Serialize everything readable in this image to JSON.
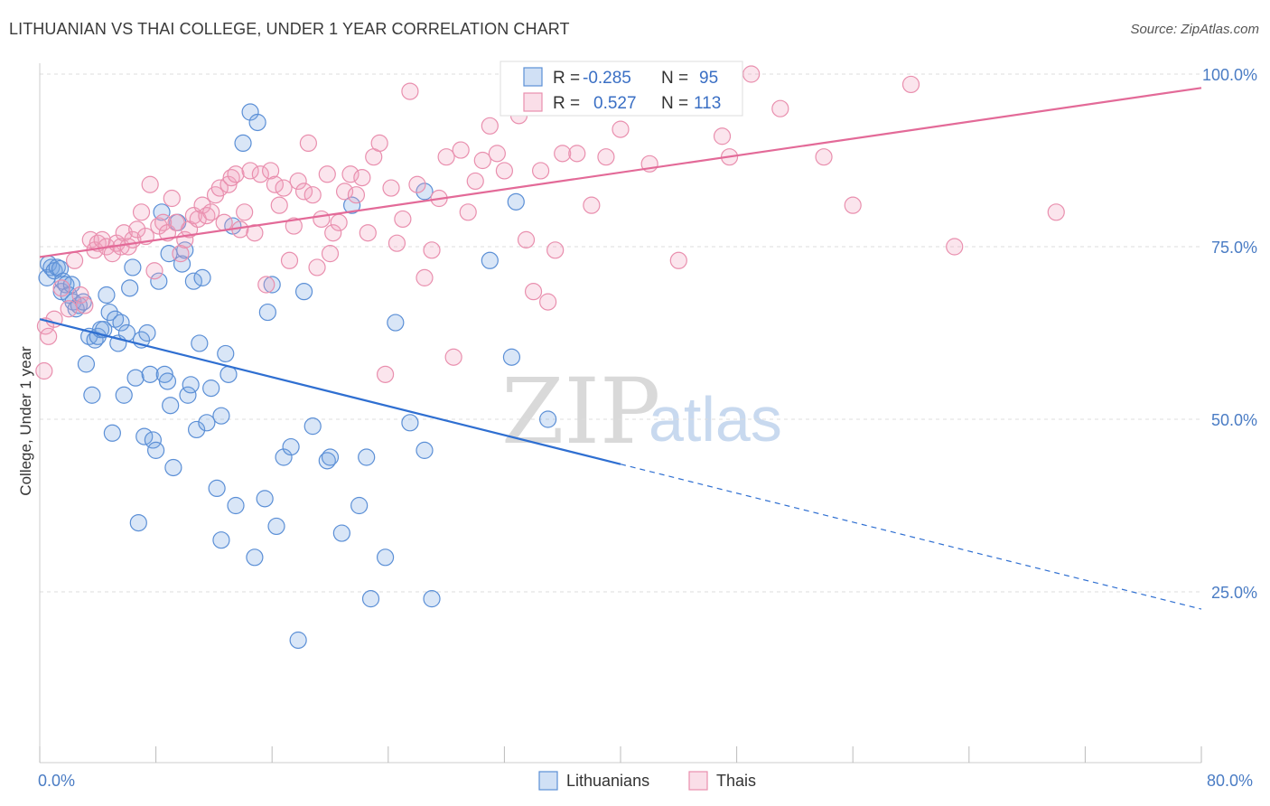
{
  "title": "LITHUANIAN VS THAI COLLEGE, UNDER 1 YEAR CORRELATION CHART",
  "source": "Source: ZipAtlas.com",
  "watermark": {
    "zip": "ZIP",
    "atlas": "atlas"
  },
  "colors": {
    "blue": "#5b8fd6",
    "blue_fill": "rgba(120,165,225,0.28)",
    "blue_line": "#2f6fd1",
    "pink": "#e98fae",
    "pink_fill": "rgba(240,160,190,0.28)",
    "pink_line": "#e36a98",
    "grid": "#dddddd",
    "tick_text": "#4a7cc4"
  },
  "stats_box": {
    "rows": [
      {
        "r_label": "R =",
        "r_value": "-0.285",
        "n_label": "N =",
        "n_value": "95"
      },
      {
        "r_label": "R =",
        "r_value": "0.527",
        "n_label": "N =",
        "n_value": "113"
      }
    ]
  },
  "legend": {
    "items": [
      "Lithuanians",
      "Thais"
    ]
  },
  "chart_data": {
    "type": "scatter",
    "title": "LITHUANIAN VS THAI COLLEGE, UNDER 1 YEAR CORRELATION CHART",
    "xlabel": "",
    "ylabel": "College, Under 1 year",
    "xlim": [
      0,
      80
    ],
    "ylim": [
      0,
      105
    ],
    "x_tick_labels": {
      "left": "0.0%",
      "right": "80.0%"
    },
    "y_ticks": [
      {
        "value": 25,
        "label": "25.0%"
      },
      {
        "value": 50,
        "label": "50.0%"
      },
      {
        "value": 75,
        "label": "75.0%"
      },
      {
        "value": 100,
        "label": "100.0%"
      }
    ],
    "grid": true,
    "series": [
      {
        "name": "Lithuanians",
        "color": "#5b8fd6",
        "trend": {
          "x0": 0,
          "y0": 64.5,
          "x1": 40,
          "y1": 43.5,
          "dash_to_x": 80,
          "dash_to_y": 22.5
        },
        "points": [
          [
            0.5,
            70.5
          ],
          [
            0.6,
            72.5
          ],
          [
            0.8,
            72.0
          ],
          [
            1.0,
            71.5
          ],
          [
            1.2,
            72.0
          ],
          [
            1.4,
            71.8
          ],
          [
            1.5,
            68.5
          ],
          [
            1.6,
            70.0
          ],
          [
            1.8,
            69.5
          ],
          [
            2.0,
            68.0
          ],
          [
            2.2,
            69.5
          ],
          [
            2.3,
            67.0
          ],
          [
            2.5,
            66.0
          ],
          [
            2.7,
            66.5
          ],
          [
            3.0,
            67.0
          ],
          [
            3.2,
            58.0
          ],
          [
            3.4,
            62.0
          ],
          [
            3.6,
            53.5
          ],
          [
            3.8,
            61.5
          ],
          [
            4.0,
            62.0
          ],
          [
            4.2,
            63.0
          ],
          [
            4.4,
            63.0
          ],
          [
            4.6,
            68.0
          ],
          [
            4.8,
            65.5
          ],
          [
            5.0,
            48.0
          ],
          [
            5.2,
            64.5
          ],
          [
            5.4,
            61.0
          ],
          [
            5.6,
            64.0
          ],
          [
            5.8,
            53.5
          ],
          [
            6.0,
            62.5
          ],
          [
            6.2,
            69.0
          ],
          [
            6.4,
            72.0
          ],
          [
            6.6,
            56.0
          ],
          [
            6.8,
            35.0
          ],
          [
            7.0,
            61.5
          ],
          [
            7.2,
            47.5
          ],
          [
            7.4,
            62.5
          ],
          [
            7.6,
            56.5
          ],
          [
            7.8,
            47.0
          ],
          [
            8.0,
            45.5
          ],
          [
            8.2,
            70.0
          ],
          [
            8.4,
            80.0
          ],
          [
            8.6,
            56.5
          ],
          [
            8.8,
            55.5
          ],
          [
            9.0,
            52.0
          ],
          [
            9.2,
            43.0
          ],
          [
            9.5,
            78.5
          ],
          [
            9.8,
            72.5
          ],
          [
            10.0,
            74.5
          ],
          [
            10.2,
            53.5
          ],
          [
            10.4,
            55.0
          ],
          [
            10.6,
            70.0
          ],
          [
            10.8,
            48.5
          ],
          [
            11.0,
            61.0
          ],
          [
            11.2,
            70.5
          ],
          [
            11.5,
            49.5
          ],
          [
            11.8,
            54.5
          ],
          [
            12.2,
            40.0
          ],
          [
            12.5,
            50.5
          ],
          [
            12.5,
            32.5
          ],
          [
            12.8,
            59.5
          ],
          [
            13.0,
            56.5
          ],
          [
            13.3,
            78.0
          ],
          [
            13.5,
            37.5
          ],
          [
            14.0,
            90.0
          ],
          [
            14.5,
            94.5
          ],
          [
            14.8,
            30.0
          ],
          [
            15.0,
            93.0
          ],
          [
            15.5,
            38.5
          ],
          [
            15.7,
            65.5
          ],
          [
            16.0,
            69.5
          ],
          [
            16.3,
            34.5
          ],
          [
            16.8,
            44.5
          ],
          [
            17.3,
            46.0
          ],
          [
            17.8,
            18.0
          ],
          [
            18.2,
            68.5
          ],
          [
            18.8,
            49.0
          ],
          [
            19.8,
            44.0
          ],
          [
            20.0,
            44.5
          ],
          [
            20.8,
            33.5
          ],
          [
            21.5,
            81.0
          ],
          [
            22.0,
            37.5
          ],
          [
            22.5,
            44.5
          ],
          [
            22.8,
            24.0
          ],
          [
            23.8,
            30.0
          ],
          [
            24.5,
            64.0
          ],
          [
            25.5,
            49.5
          ],
          [
            26.5,
            45.5
          ],
          [
            26.5,
            83.0
          ],
          [
            27.0,
            24.0
          ],
          [
            31.0,
            73.0
          ],
          [
            32.5,
            59.0
          ],
          [
            32.8,
            81.5
          ],
          [
            35.0,
            50.0
          ],
          [
            8.9,
            74.0
          ]
        ]
      },
      {
        "name": "Thais",
        "color": "#e98fae",
        "trend": {
          "x0": 0,
          "y0": 73.5,
          "x1": 80,
          "y1": 98.0
        },
        "points": [
          [
            0.3,
            57.0
          ],
          [
            0.4,
            63.5
          ],
          [
            0.6,
            62.0
          ],
          [
            1.0,
            64.5
          ],
          [
            1.5,
            69.0
          ],
          [
            2.0,
            66.0
          ],
          [
            2.4,
            73.0
          ],
          [
            2.8,
            68.0
          ],
          [
            3.1,
            66.5
          ],
          [
            3.5,
            76.0
          ],
          [
            3.8,
            74.5
          ],
          [
            4.0,
            75.5
          ],
          [
            4.3,
            76.0
          ],
          [
            4.6,
            75.0
          ],
          [
            5.0,
            74.0
          ],
          [
            5.3,
            75.5
          ],
          [
            5.6,
            75.0
          ],
          [
            5.8,
            77.0
          ],
          [
            6.1,
            75.0
          ],
          [
            6.4,
            76.0
          ],
          [
            6.7,
            77.5
          ],
          [
            7.0,
            80.0
          ],
          [
            7.3,
            76.5
          ],
          [
            7.6,
            84.0
          ],
          [
            7.9,
            71.5
          ],
          [
            8.2,
            78.0
          ],
          [
            8.5,
            78.5
          ],
          [
            8.8,
            77.0
          ],
          [
            9.1,
            82.0
          ],
          [
            9.4,
            78.5
          ],
          [
            9.7,
            74.0
          ],
          [
            10.0,
            76.0
          ],
          [
            10.3,
            77.5
          ],
          [
            10.6,
            79.5
          ],
          [
            10.9,
            79.0
          ],
          [
            11.2,
            81.0
          ],
          [
            11.5,
            79.5
          ],
          [
            11.8,
            80.0
          ],
          [
            12.1,
            82.5
          ],
          [
            12.4,
            83.5
          ],
          [
            12.7,
            78.5
          ],
          [
            13.0,
            84.0
          ],
          [
            13.2,
            85.0
          ],
          [
            13.5,
            85.5
          ],
          [
            13.8,
            77.5
          ],
          [
            14.1,
            80.0
          ],
          [
            14.5,
            86.0
          ],
          [
            14.8,
            77.0
          ],
          [
            15.2,
            85.5
          ],
          [
            15.6,
            69.5
          ],
          [
            15.9,
            86.0
          ],
          [
            16.2,
            84.0
          ],
          [
            16.5,
            81.0
          ],
          [
            16.8,
            83.5
          ],
          [
            17.2,
            73.0
          ],
          [
            17.5,
            78.0
          ],
          [
            17.8,
            84.5
          ],
          [
            18.2,
            83.0
          ],
          [
            18.5,
            90.0
          ],
          [
            18.8,
            82.5
          ],
          [
            19.1,
            72.0
          ],
          [
            19.4,
            79.0
          ],
          [
            19.8,
            85.5
          ],
          [
            20.2,
            77.0
          ],
          [
            20.6,
            78.5
          ],
          [
            21.0,
            83.0
          ],
          [
            21.4,
            85.5
          ],
          [
            21.8,
            82.5
          ],
          [
            22.2,
            85.0
          ],
          [
            22.6,
            77.0
          ],
          [
            23.0,
            88.0
          ],
          [
            23.4,
            90.0
          ],
          [
            23.8,
            56.5
          ],
          [
            24.2,
            83.5
          ],
          [
            24.6,
            75.5
          ],
          [
            25.0,
            79.0
          ],
          [
            25.5,
            97.5
          ],
          [
            26.0,
            84.0
          ],
          [
            26.5,
            70.5
          ],
          [
            27.0,
            74.5
          ],
          [
            27.5,
            82.0
          ],
          [
            28.0,
            88.0
          ],
          [
            28.5,
            59.0
          ],
          [
            29.0,
            89.0
          ],
          [
            29.5,
            80.0
          ],
          [
            30.0,
            84.5
          ],
          [
            30.5,
            87.5
          ],
          [
            31.0,
            92.5
          ],
          [
            31.5,
            88.5
          ],
          [
            32.0,
            86.0
          ],
          [
            33.0,
            94.0
          ],
          [
            33.5,
            76.0
          ],
          [
            34.0,
            68.5
          ],
          [
            34.5,
            86.0
          ],
          [
            35.0,
            67.0
          ],
          [
            35.5,
            74.5
          ],
          [
            36.0,
            88.5
          ],
          [
            37.0,
            88.5
          ],
          [
            38.0,
            81.0
          ],
          [
            39.0,
            88.0
          ],
          [
            40.0,
            92.0
          ],
          [
            42.0,
            87.0
          ],
          [
            44.0,
            73.0
          ],
          [
            47.0,
            91.0
          ],
          [
            47.5,
            88.0
          ],
          [
            49.0,
            100.0
          ],
          [
            51.0,
            95.0
          ],
          [
            54.0,
            88.0
          ],
          [
            56.0,
            81.0
          ],
          [
            60.0,
            98.5
          ],
          [
            63.0,
            75.0
          ],
          [
            70.0,
            80.0
          ],
          [
            20.0,
            74.0
          ]
        ]
      }
    ]
  }
}
